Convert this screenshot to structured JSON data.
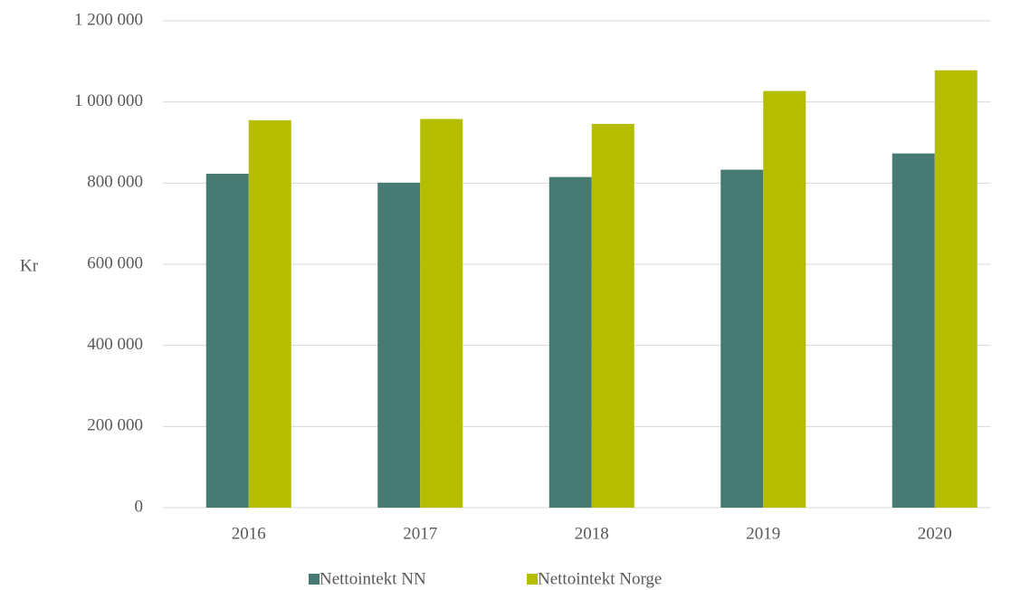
{
  "chart_data": {
    "type": "bar",
    "y_label": "Kr",
    "categories": [
      "2016",
      "2017",
      "2018",
      "2019",
      "2020"
    ],
    "series": [
      {
        "name": "Nettointekt NN",
        "color": "#467a72",
        "values": [
          823000,
          801000,
          815000,
          833000,
          873000
        ]
      },
      {
        "name": "Nettointekt Norge",
        "color": "#b5bd00",
        "values": [
          955000,
          958000,
          946000,
          1027000,
          1078000
        ]
      }
    ],
    "ylim": [
      0,
      1200000
    ],
    "yticks": [
      0,
      {
        "value": 200000,
        "label": "200 000"
      },
      {
        "value": 400000,
        "label": "400 000"
      },
      {
        "value": 600000,
        "label": "600 000"
      },
      {
        "value": 800000,
        "label": "800 000"
      },
      {
        "value": 1000000,
        "label": "1 000 000"
      },
      {
        "value": 1200000,
        "label": "1 200 000"
      }
    ],
    "grid": true,
    "legend": "bottom"
  }
}
